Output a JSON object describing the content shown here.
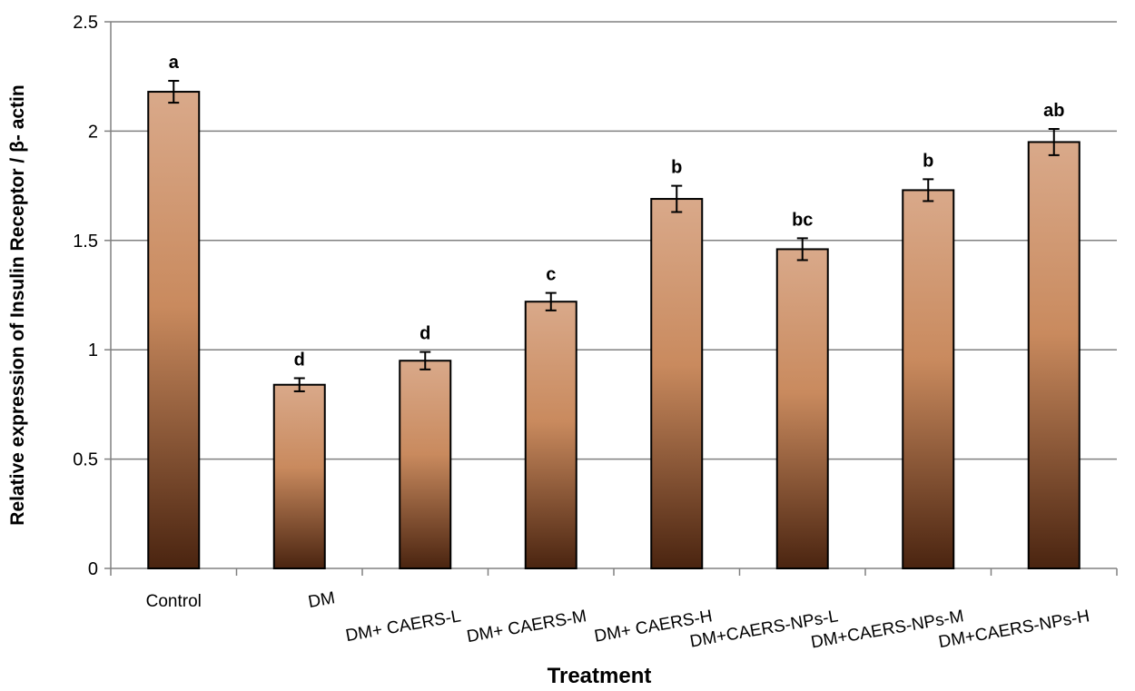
{
  "chart_data": {
    "type": "bar",
    "title": "",
    "xlabel": "Treatment",
    "ylabel": "Relative expression of Insulin Receptor / β- actin",
    "ylim": [
      0,
      2.5
    ],
    "yticks": [
      "0",
      "0.5",
      "1",
      "1.5",
      "2",
      "2.5"
    ],
    "grid": true,
    "categories": [
      "Control",
      "DM",
      "DM+ CAERS-L",
      "DM+ CAERS-M",
      "DM+ CAERS-H",
      "DM+CAERS-NPs-L",
      "DM+CAERS-NPs-M",
      "DM+CAERS-NPs-H"
    ],
    "values": [
      2.18,
      0.84,
      0.95,
      1.22,
      1.69,
      1.46,
      1.73,
      1.95
    ],
    "errors": [
      0.05,
      0.03,
      0.04,
      0.04,
      0.06,
      0.05,
      0.05,
      0.06
    ],
    "significance": [
      "a",
      "d",
      "d",
      "c",
      "b",
      "bc",
      "b",
      "ab"
    ],
    "colors": {
      "bar_light": "#d9a98a",
      "bar_mid": "#c98a5e",
      "bar_dark": "#4a2410",
      "grid": "#808080",
      "axis": "#808080",
      "outline": "#000000"
    }
  }
}
